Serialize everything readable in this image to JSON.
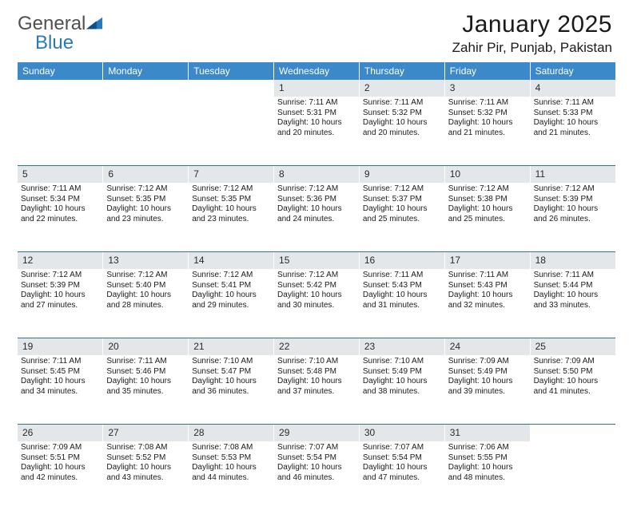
{
  "brand": {
    "word1": "General",
    "word2": "Blue"
  },
  "header": {
    "title": "January 2025",
    "subtitle": "Zahir Pir, Punjab, Pakistan"
  },
  "colors": {
    "header_bg": "#3b89c9",
    "daynum_bg": "#e4e7ea",
    "rule": "#2f6fa8"
  },
  "daynames": [
    "Sunday",
    "Monday",
    "Tuesday",
    "Wednesday",
    "Thursday",
    "Friday",
    "Saturday"
  ],
  "weeks": [
    [
      null,
      null,
      null,
      {
        "n": "1",
        "sr": "7:11 AM",
        "ss": "5:31 PM",
        "dh": "10",
        "dm": "20"
      },
      {
        "n": "2",
        "sr": "7:11 AM",
        "ss": "5:32 PM",
        "dh": "10",
        "dm": "20"
      },
      {
        "n": "3",
        "sr": "7:11 AM",
        "ss": "5:32 PM",
        "dh": "10",
        "dm": "21"
      },
      {
        "n": "4",
        "sr": "7:11 AM",
        "ss": "5:33 PM",
        "dh": "10",
        "dm": "21"
      }
    ],
    [
      {
        "n": "5",
        "sr": "7:11 AM",
        "ss": "5:34 PM",
        "dh": "10",
        "dm": "22"
      },
      {
        "n": "6",
        "sr": "7:12 AM",
        "ss": "5:35 PM",
        "dh": "10",
        "dm": "23"
      },
      {
        "n": "7",
        "sr": "7:12 AM",
        "ss": "5:35 PM",
        "dh": "10",
        "dm": "23"
      },
      {
        "n": "8",
        "sr": "7:12 AM",
        "ss": "5:36 PM",
        "dh": "10",
        "dm": "24"
      },
      {
        "n": "9",
        "sr": "7:12 AM",
        "ss": "5:37 PM",
        "dh": "10",
        "dm": "25"
      },
      {
        "n": "10",
        "sr": "7:12 AM",
        "ss": "5:38 PM",
        "dh": "10",
        "dm": "25"
      },
      {
        "n": "11",
        "sr": "7:12 AM",
        "ss": "5:39 PM",
        "dh": "10",
        "dm": "26"
      }
    ],
    [
      {
        "n": "12",
        "sr": "7:12 AM",
        "ss": "5:39 PM",
        "dh": "10",
        "dm": "27"
      },
      {
        "n": "13",
        "sr": "7:12 AM",
        "ss": "5:40 PM",
        "dh": "10",
        "dm": "28"
      },
      {
        "n": "14",
        "sr": "7:12 AM",
        "ss": "5:41 PM",
        "dh": "10",
        "dm": "29"
      },
      {
        "n": "15",
        "sr": "7:12 AM",
        "ss": "5:42 PM",
        "dh": "10",
        "dm": "30"
      },
      {
        "n": "16",
        "sr": "7:11 AM",
        "ss": "5:43 PM",
        "dh": "10",
        "dm": "31"
      },
      {
        "n": "17",
        "sr": "7:11 AM",
        "ss": "5:43 PM",
        "dh": "10",
        "dm": "32"
      },
      {
        "n": "18",
        "sr": "7:11 AM",
        "ss": "5:44 PM",
        "dh": "10",
        "dm": "33"
      }
    ],
    [
      {
        "n": "19",
        "sr": "7:11 AM",
        "ss": "5:45 PM",
        "dh": "10",
        "dm": "34"
      },
      {
        "n": "20",
        "sr": "7:11 AM",
        "ss": "5:46 PM",
        "dh": "10",
        "dm": "35"
      },
      {
        "n": "21",
        "sr": "7:10 AM",
        "ss": "5:47 PM",
        "dh": "10",
        "dm": "36"
      },
      {
        "n": "22",
        "sr": "7:10 AM",
        "ss": "5:48 PM",
        "dh": "10",
        "dm": "37"
      },
      {
        "n": "23",
        "sr": "7:10 AM",
        "ss": "5:49 PM",
        "dh": "10",
        "dm": "38"
      },
      {
        "n": "24",
        "sr": "7:09 AM",
        "ss": "5:49 PM",
        "dh": "10",
        "dm": "39"
      },
      {
        "n": "25",
        "sr": "7:09 AM",
        "ss": "5:50 PM",
        "dh": "10",
        "dm": "41"
      }
    ],
    [
      {
        "n": "26",
        "sr": "7:09 AM",
        "ss": "5:51 PM",
        "dh": "10",
        "dm": "42"
      },
      {
        "n": "27",
        "sr": "7:08 AM",
        "ss": "5:52 PM",
        "dh": "10",
        "dm": "43"
      },
      {
        "n": "28",
        "sr": "7:08 AM",
        "ss": "5:53 PM",
        "dh": "10",
        "dm": "44"
      },
      {
        "n": "29",
        "sr": "7:07 AM",
        "ss": "5:54 PM",
        "dh": "10",
        "dm": "46"
      },
      {
        "n": "30",
        "sr": "7:07 AM",
        "ss": "5:54 PM",
        "dh": "10",
        "dm": "47"
      },
      {
        "n": "31",
        "sr": "7:06 AM",
        "ss": "5:55 PM",
        "dh": "10",
        "dm": "48"
      },
      null
    ]
  ],
  "labels": {
    "sunrise": "Sunrise:",
    "sunset": "Sunset:",
    "daylight": "Daylight:",
    "hours": "hours",
    "and": "and",
    "minutes": "minutes."
  }
}
